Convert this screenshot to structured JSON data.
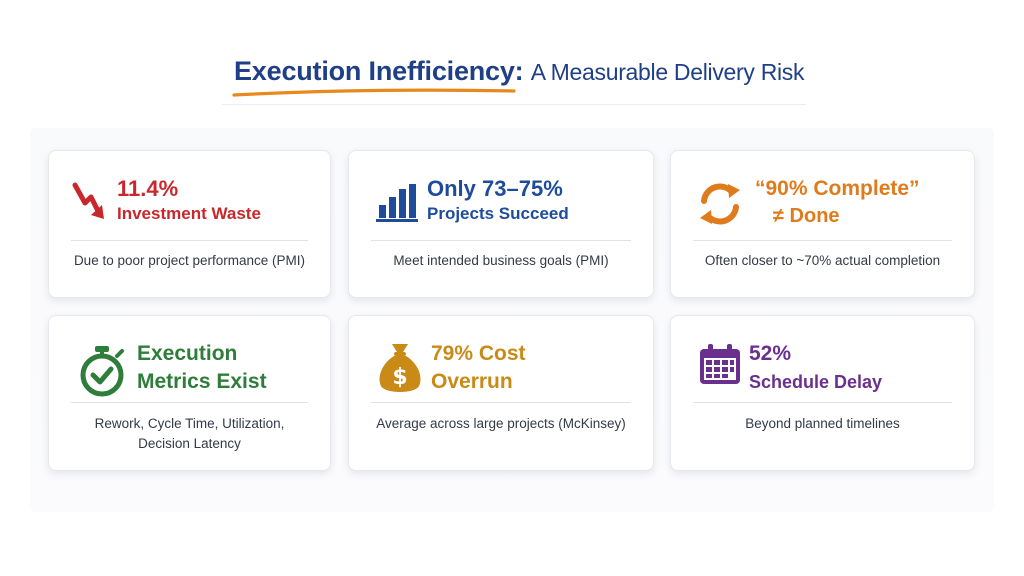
{
  "title": {
    "main": "Execution Inefficiency:",
    "sub": "A Measurable Delivery Risk"
  },
  "colors": {
    "title": "#1f3f86",
    "underline": "#e8891e",
    "red": "#c8282b",
    "blue": "#1f4c9a",
    "orange": "#e07b1c",
    "green": "#2e7d3a",
    "amber": "#c98a17",
    "purple": "#6b2f8e"
  },
  "cards": [
    {
      "icon": "down-trend-arrow-icon",
      "line1": "11.4%",
      "line2": "Investment Waste",
      "desc": "Due to poor project performance (PMI)"
    },
    {
      "icon": "bar-chart-icon",
      "line1": "Only 73–75%",
      "line2": "Projects Succeed",
      "desc": "Meet intended business goals (PMI)"
    },
    {
      "icon": "refresh-cycle-icon",
      "line1": "“90% Complete”",
      "line2": "≠ Done",
      "desc": "Often closer to ~70% actual completion"
    },
    {
      "icon": "stopwatch-check-icon",
      "line1": "Execution",
      "line2": "Metrics Exist",
      "desc": "Rework, Cycle Time, Utilization,\nDecision Latency"
    },
    {
      "icon": "money-bag-icon",
      "line1": "79% Cost",
      "line2": "Overrun",
      "desc": "Average across large projects (McKinsey)"
    },
    {
      "icon": "calendar-icon",
      "line1": "52%",
      "line2": "Schedule Delay",
      "desc": "Beyond planned timelines"
    }
  ]
}
